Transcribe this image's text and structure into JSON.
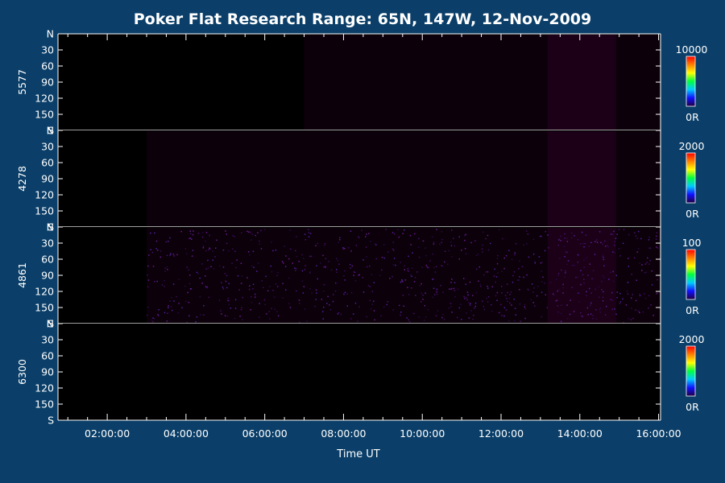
{
  "title": "Poker Flat Research Range: 65N, 147W, 12-Nov-2009",
  "colors": {
    "background": "#0b3f69",
    "plot_background": "#000000",
    "foreground": "#ffffff",
    "colorbar_scale": [
      "#200040",
      "#1010ff",
      "#00ccff",
      "#00ff40",
      "#ffff00",
      "#ff8000",
      "#ff0000"
    ]
  },
  "chart_data": {
    "type": "heatmap",
    "xlabel": "Time UT",
    "x_tick_labels": [
      "02:00:00",
      "04:00:00",
      "06:00:00",
      "08:00:00",
      "10:00:00",
      "12:00:00",
      "14:00:00",
      "16:00:00"
    ],
    "x_ticks_hours": [
      2,
      4,
      6,
      8,
      10,
      12,
      14,
      16
    ],
    "xlim_hours": [
      0.75,
      16.05
    ],
    "y_tick_labels": [
      "N",
      "30",
      "60",
      "90",
      "120",
      "150",
      "S"
    ],
    "y_ticks": [
      0,
      30,
      60,
      90,
      120,
      150,
      180
    ],
    "ylim": [
      0,
      180
    ],
    "panels": [
      {
        "label": "5577",
        "colorbar_max_label": "10000",
        "colorbar_min_label": "0R",
        "colorbar_max": 10000,
        "emission_start_hour": 7.0,
        "emission_peak_hour": 14.0,
        "noise": false
      },
      {
        "label": "4278",
        "colorbar_max_label": "2000",
        "colorbar_min_label": "0R",
        "colorbar_max": 2000,
        "emission_start_hour": 3.0,
        "emission_peak_hour": 14.0,
        "noise": false
      },
      {
        "label": "4861",
        "colorbar_max_label": "100",
        "colorbar_min_label": "0R",
        "colorbar_max": 100,
        "emission_start_hour": 3.0,
        "emission_peak_hour": 14.0,
        "noise": true
      },
      {
        "label": "6300",
        "colorbar_max_label": "2000",
        "colorbar_min_label": "0R",
        "colorbar_max": 2000,
        "emission_start_hour": null,
        "emission_peak_hour": null,
        "noise": false
      }
    ]
  }
}
